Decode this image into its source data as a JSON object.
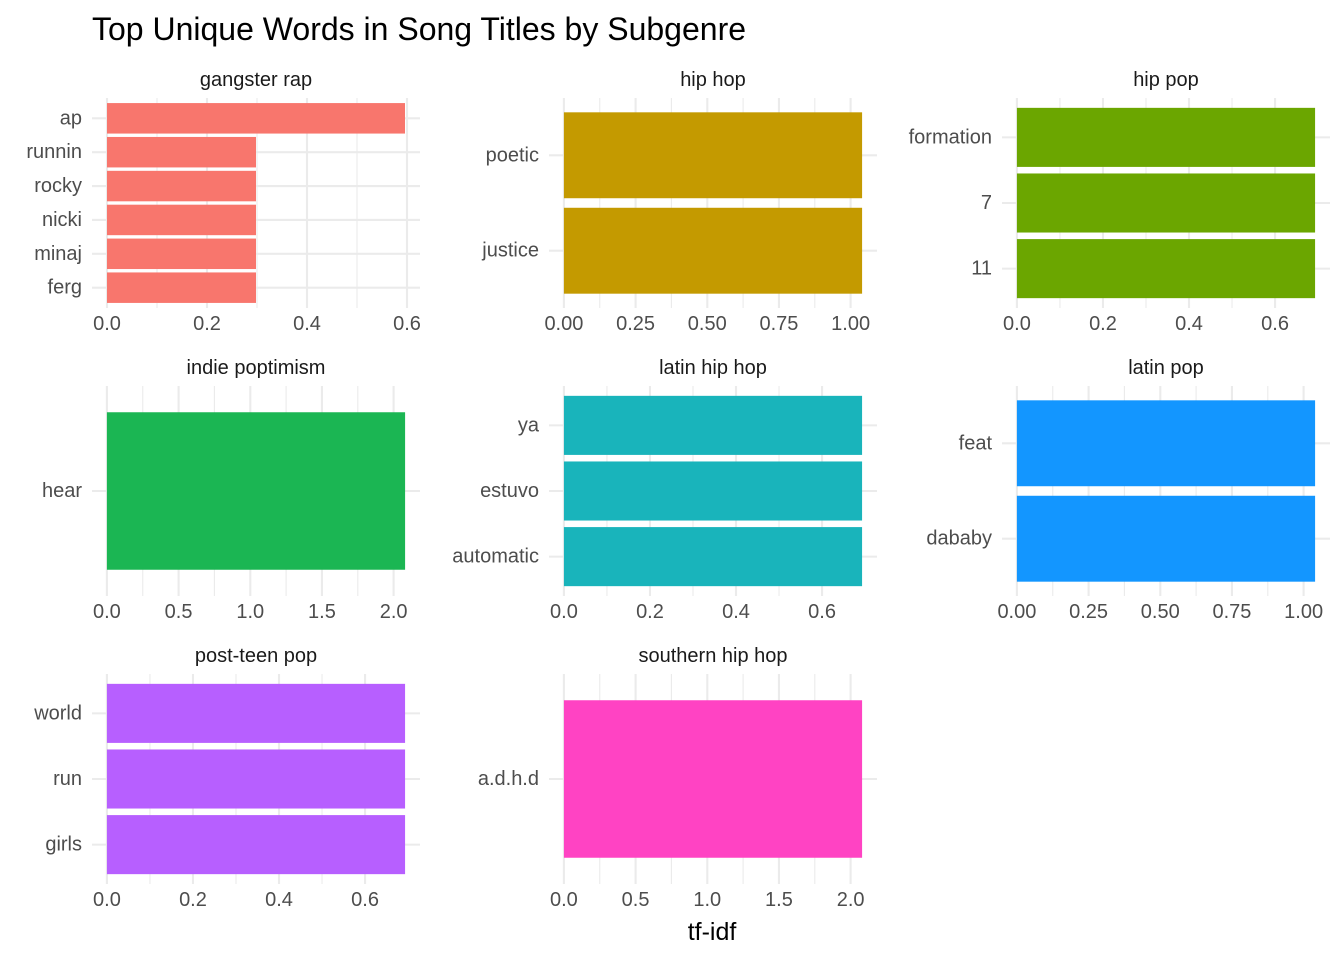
{
  "chart_data": {
    "type": "bar",
    "orientation": "horizontal",
    "title": "Top Unique Words in Song Titles by Subgenre",
    "xlabel": "tf-idf",
    "ylabel": "",
    "grid": true,
    "legend": "none",
    "facets": [
      {
        "name": "gangster rap",
        "color": "#F8766D",
        "categories": [
          "ap",
          "runnin",
          "rocky",
          "nicki",
          "minaj",
          "ferg"
        ],
        "values": [
          0.596,
          0.298,
          0.298,
          0.298,
          0.298,
          0.298
        ],
        "xlim": [
          -0.03,
          0.626
        ],
        "xticks": [
          0.0,
          0.2,
          0.4,
          0.6
        ],
        "xtick_labels": [
          "0.0",
          "0.2",
          "0.4",
          "0.6"
        ]
      },
      {
        "name": "hip hop",
        "color": "#C49A00",
        "categories": [
          "poetic",
          "justice"
        ],
        "values": [
          1.04,
          1.04
        ],
        "xlim": [
          -0.052,
          1.092
        ],
        "xticks": [
          0.0,
          0.25,
          0.5,
          0.75,
          1.0
        ],
        "xtick_labels": [
          "0.00",
          "0.25",
          "0.50",
          "0.75",
          "1.00"
        ]
      },
      {
        "name": "hip pop",
        "color": "#6BA600",
        "categories": [
          "formation",
          "7",
          "11"
        ],
        "values": [
          0.693,
          0.693,
          0.693
        ],
        "xlim": [
          -0.0347,
          0.7277
        ],
        "xticks": [
          0.0,
          0.2,
          0.4,
          0.6
        ],
        "xtick_labels": [
          "0.0",
          "0.2",
          "0.4",
          "0.6"
        ]
      },
      {
        "name": "indie poptimism",
        "color": "#1BB653",
        "categories": [
          "hear"
        ],
        "values": [
          2.08
        ],
        "xlim": [
          -0.104,
          2.184
        ],
        "xticks": [
          0.0,
          0.5,
          1.0,
          1.5,
          2.0
        ],
        "xtick_labels": [
          "0.0",
          "0.5",
          "1.0",
          "1.5",
          "2.0"
        ]
      },
      {
        "name": "latin hip hop",
        "color": "#19B4BB",
        "categories": [
          "ya",
          "estuvo",
          "automatic"
        ],
        "values": [
          0.693,
          0.693,
          0.693
        ],
        "xlim": [
          -0.0347,
          0.7277
        ],
        "xticks": [
          0.0,
          0.2,
          0.4,
          0.6
        ],
        "xtick_labels": [
          "0.0",
          "0.2",
          "0.4",
          "0.6"
        ]
      },
      {
        "name": "latin pop",
        "color": "#1396FF",
        "categories": [
          "feat",
          "dababy"
        ],
        "values": [
          1.04,
          1.04
        ],
        "xlim": [
          -0.052,
          1.092
        ],
        "xticks": [
          0.0,
          0.25,
          0.5,
          0.75,
          1.0
        ],
        "xtick_labels": [
          "0.00",
          "0.25",
          "0.50",
          "0.75",
          "1.00"
        ]
      },
      {
        "name": "post-teen pop",
        "color": "#B75FFF",
        "categories": [
          "world",
          "run",
          "girls"
        ],
        "values": [
          0.693,
          0.693,
          0.693
        ],
        "xlim": [
          -0.0347,
          0.7277
        ],
        "xticks": [
          0.0,
          0.2,
          0.4,
          0.6
        ],
        "xtick_labels": [
          "0.0",
          "0.2",
          "0.4",
          "0.6"
        ]
      },
      {
        "name": "southern hip hop",
        "color": "#FF43C3",
        "categories": [
          "a.d.h.d"
        ],
        "values": [
          2.08
        ],
        "xlim": [
          -0.104,
          2.184
        ],
        "xticks": [
          0.0,
          0.5,
          1.0,
          1.5,
          2.0
        ],
        "xtick_labels": [
          "0.0",
          "0.5",
          "1.0",
          "1.5",
          "2.0"
        ]
      }
    ]
  }
}
